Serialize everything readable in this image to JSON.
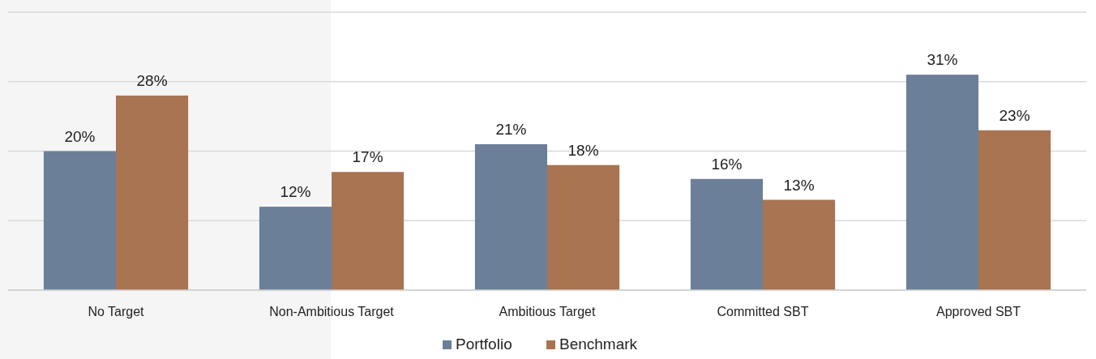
{
  "chart_data": {
    "type": "bar",
    "categories": [
      "No Target",
      "Non-Ambitious Target",
      "Ambitious Target",
      "Committed SBT",
      "Approved SBT"
    ],
    "series": [
      {
        "name": "Portfolio",
        "color": "#6b7f99",
        "values": [
          20,
          12,
          21,
          16,
          31
        ],
        "value_labels": [
          "20%",
          "12%",
          "21%",
          "16%",
          "31%"
        ]
      },
      {
        "name": "Benchmark",
        "color": "#a87452",
        "values": [
          28,
          17,
          18,
          13,
          23
        ],
        "value_labels": [
          "28%",
          "17%",
          "18%",
          "13%",
          "23%"
        ]
      }
    ],
    "ylim": [
      0,
      40
    ],
    "yticks": [
      {
        "value": 0,
        "label": null
      },
      {
        "value": 10,
        "label": null
      },
      {
        "value": 20,
        "label": null
      },
      {
        "value": 30,
        "label": null
      },
      {
        "value": 40,
        "label": null
      }
    ],
    "tick_labels": "x",
    "grid": "y",
    "legend": "bottom"
  }
}
